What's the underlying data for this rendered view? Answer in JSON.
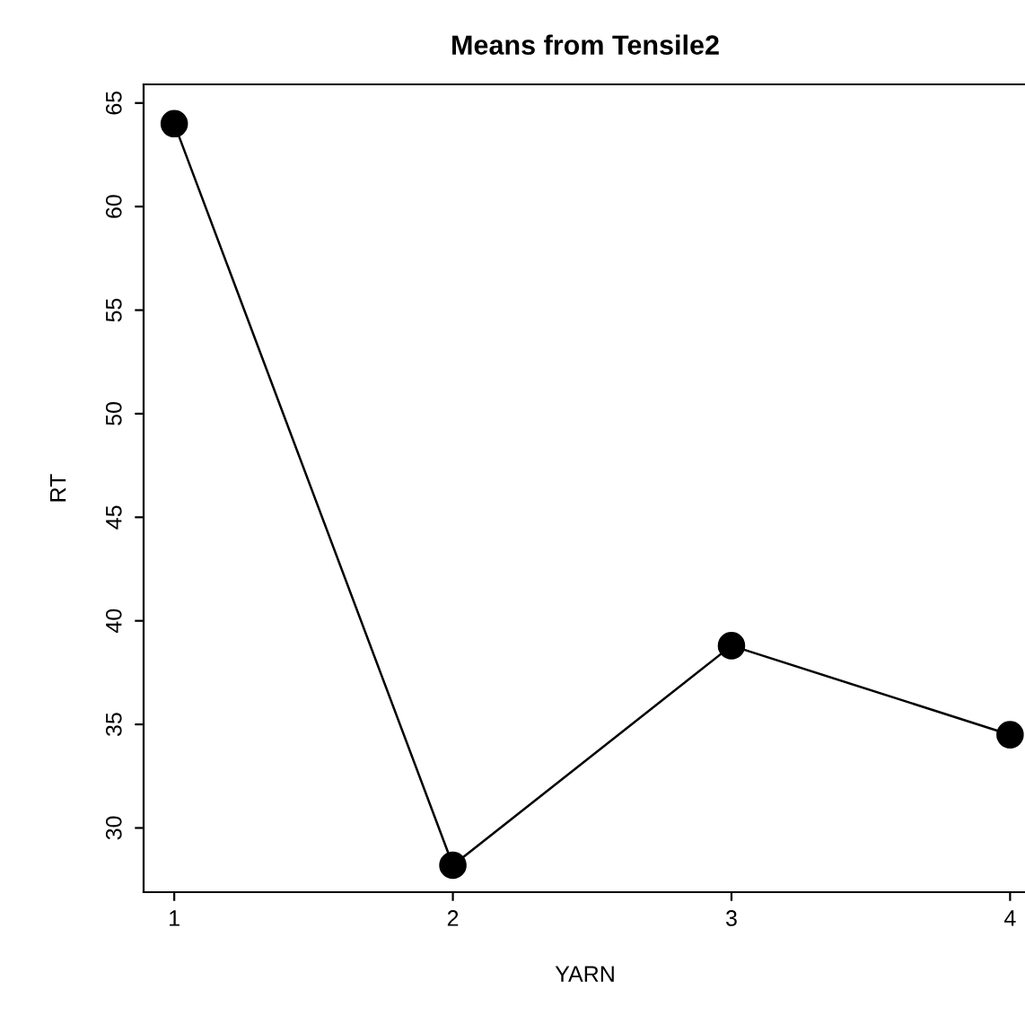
{
  "chart_data": {
    "type": "line",
    "title": "Means from Tensile2",
    "xlabel": "YARN",
    "ylabel": "RT",
    "x": [
      1,
      2,
      3,
      4
    ],
    "series": [
      {
        "color": "#000000",
        "values": [
          64.0,
          28.2,
          38.8,
          34.5
        ]
      }
    ],
    "xlim": [
      0.89,
      4.06
    ],
    "ylim": [
      26.9,
      65.9
    ],
    "xticks": [
      1,
      2,
      3,
      4
    ],
    "yticks": [
      30,
      35,
      40,
      45,
      50,
      55,
      60,
      65
    ],
    "grid": false,
    "marker": "circle",
    "line_style": "solid"
  }
}
